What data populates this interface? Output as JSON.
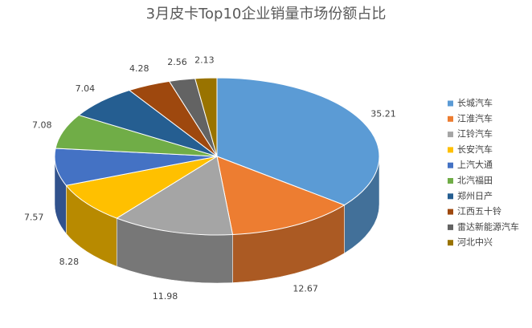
{
  "chart_data": {
    "type": "pie3d",
    "title": "3月皮卡Top10企业销量市场份额占比",
    "categories": [
      "长城汽车",
      "江淮汽车",
      "江铃汽车",
      "长安汽车",
      "上汽大通",
      "北汽福田",
      "郑州日产",
      "江西五十铃",
      "雷达新能源汽车",
      "河北中兴"
    ],
    "values": [
      35.21,
      12.67,
      11.98,
      8.28,
      7.57,
      7.08,
      7.04,
      4.28,
      2.56,
      2.13
    ],
    "colors": [
      "#5b9bd5",
      "#ed7d31",
      "#a5a5a5",
      "#ffc000",
      "#4472c4",
      "#70ad47",
      "#255e91",
      "#9e480e",
      "#636363",
      "#997300"
    ],
    "legend": "right"
  }
}
